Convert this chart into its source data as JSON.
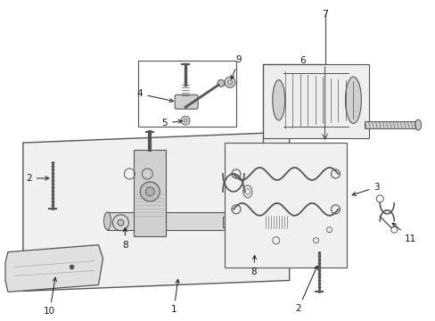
{
  "background_color": "#ffffff",
  "figure_size": [
    4.89,
    3.6
  ],
  "dpi": 100,
  "black": "#1a1a1a",
  "gray": "#555555",
  "lgray": "#aaaaaa",
  "fill_gray": "#e8e8e8",
  "box_fill": "#e8e8e8"
}
